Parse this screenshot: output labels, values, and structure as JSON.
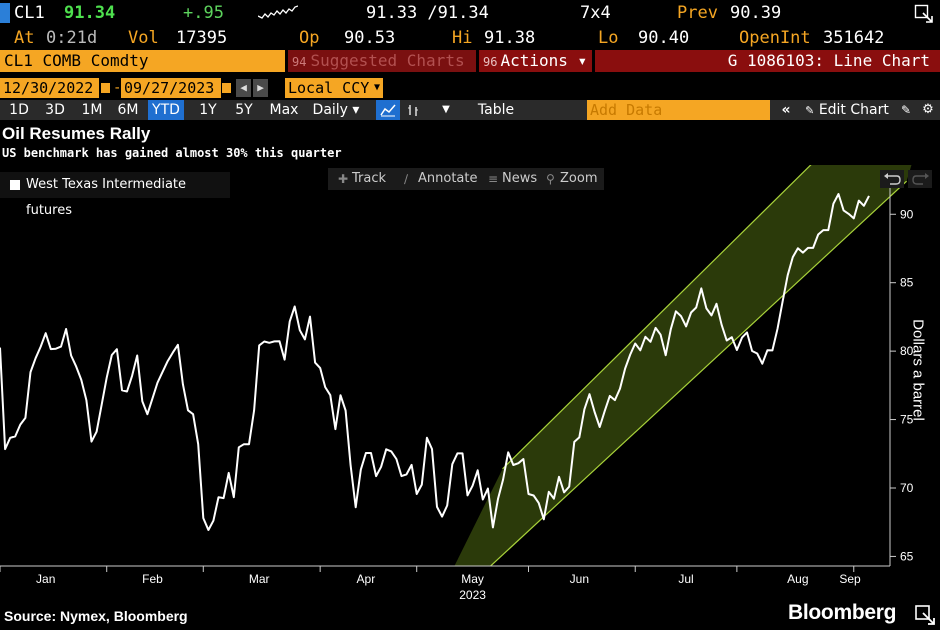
{
  "quote": {
    "ticker": "CL1",
    "last": "91.34",
    "change": "+.95",
    "bid_ask": "91.33 /91.34",
    "size": "7x4",
    "prev_label": "Prev",
    "prev_value": "90.39",
    "at_label": "At",
    "at_value": "0:21d",
    "vol_label": "Vol",
    "vol_value": "17395",
    "op_label": "Op",
    "op_value": "90.53",
    "hi_label": "Hi",
    "hi_value": "91.38",
    "lo_label": "Lo",
    "lo_value": "90.40",
    "openint_label": "OpenInt",
    "openint_value": "351642"
  },
  "command_bar": {
    "security": "CL1 COMB Comdty",
    "suggested_num": "94",
    "suggested_label": "Suggested Charts",
    "actions_num": "96",
    "actions_label": "Actions ▾",
    "chart_title": "G 1086103: Line Chart"
  },
  "date_bar": {
    "start": "12/30/2022",
    "end": "09/27/2023",
    "separator": "-",
    "currency": "Local CCY"
  },
  "toolbar": {
    "periods": [
      "1D",
      "3D",
      "1M",
      "6M",
      "YTD",
      "1Y",
      "5Y",
      "Max"
    ],
    "active_period": "YTD",
    "frequency": "Daily ▾",
    "table_label": "Table",
    "add_data_placeholder": "Add Data",
    "edit_chart_label": "Edit Chart"
  },
  "chart_tools": {
    "track": "Track",
    "annotate": "Annotate",
    "news": "News",
    "zoom": "Zoom"
  },
  "chart_header": {
    "title": "Oil Resumes Rally",
    "subtitle": "US benchmark has gained almost 30% this quarter"
  },
  "footer": {
    "source": "Source: Nymex, Bloomberg",
    "brand": "Bloomberg"
  },
  "colors": {
    "accent_amber": "#f5a623",
    "command_red": "#8a0e0e",
    "price_green": "#4ee04e",
    "channel_line": "#a8d23a",
    "channel_fill": "#3a4d0e",
    "active_blue": "#1f6fd0"
  },
  "chart_data": {
    "type": "line",
    "title": "Oil Resumes Rally",
    "subtitle": "US benchmark has gained almost 30% this quarter",
    "xlabel": "2023",
    "ylabel": "Dollars a barrel",
    "x_tick_labels": [
      "Jan",
      "Feb",
      "Mar",
      "Apr",
      "May",
      "Jun",
      "Jul",
      "Aug",
      "Sep"
    ],
    "x_year_label": "2023",
    "y_ticks": [
      65,
      70,
      75,
      80,
      85,
      90
    ],
    "ylim": [
      64.3,
      93.6
    ],
    "legend_position": "top-left",
    "grid": false,
    "series": [
      {
        "name": "West Texas Intermediate futures",
        "values": [
          80.26,
          72.84,
          73.67,
          73.77,
          74.63,
          75.12,
          78.47,
          79.48,
          80.33,
          81.31,
          80.15,
          80.18,
          80.33,
          81.62,
          79.68,
          78.87,
          77.9,
          76.41,
          73.39,
          74.11,
          76.06,
          78.06,
          79.72,
          80.14,
          77.14,
          77.05,
          78.2,
          79.68,
          76.34,
          75.39,
          76.55,
          77.69,
          78.49,
          79.27,
          79.89,
          80.46,
          77.58,
          75.68,
          75.39,
          73.2,
          67.8,
          66.93,
          67.61,
          69.33,
          69.26,
          71.1,
          69.33,
          72.97,
          73.2,
          73.2,
          75.67,
          80.42,
          80.7,
          80.61,
          80.71,
          80.72,
          79.38,
          82.16,
          83.26,
          81.53,
          80.86,
          82.52,
          79.16,
          78.76,
          77.37,
          76.78,
          74.3,
          76.78,
          75.66,
          71.66,
          68.6,
          71.34,
          72.56,
          72.56,
          70.87,
          71.55,
          72.83,
          72.67,
          72.12,
          70.87,
          70.99,
          71.69,
          69.56,
          70.25,
          73.67,
          72.85,
          68.62,
          67.91,
          68.72,
          71.74,
          72.53,
          72.53,
          69.46,
          70.17,
          71.29,
          69.16,
          69.96,
          67.12,
          69.2,
          70.62,
          72.61,
          71.68,
          71.81,
          72.12,
          69.56,
          69.45,
          68.91,
          67.71,
          69.72,
          69.22,
          70.82,
          69.68,
          70.1,
          73.37,
          73.7,
          75.75,
          76.85,
          75.55,
          74.46,
          75.62,
          76.73,
          76.42,
          77.26,
          78.72,
          79.75,
          80.56,
          80.06,
          81.05,
          80.68,
          81.7,
          81.2,
          79.7,
          81.6,
          82.91,
          82.56,
          81.81,
          82.82,
          83.19,
          84.58,
          83.12,
          82.61,
          83.46,
          81.93,
          80.78,
          81.02,
          80.08,
          80.99,
          81.37,
          80.01,
          79.83,
          79.08,
          80.06,
          80.05,
          81.63,
          83.62,
          85.55,
          86.87,
          87.51,
          87.2,
          87.54,
          87.54,
          88.52,
          88.84,
          88.84,
          90.77,
          91.48,
          90.28,
          90.03,
          89.7,
          91.0,
          90.62,
          91.34
        ]
      }
    ],
    "annotations": [
      {
        "type": "trend-channel",
        "color": "#a8d23a"
      }
    ]
  }
}
